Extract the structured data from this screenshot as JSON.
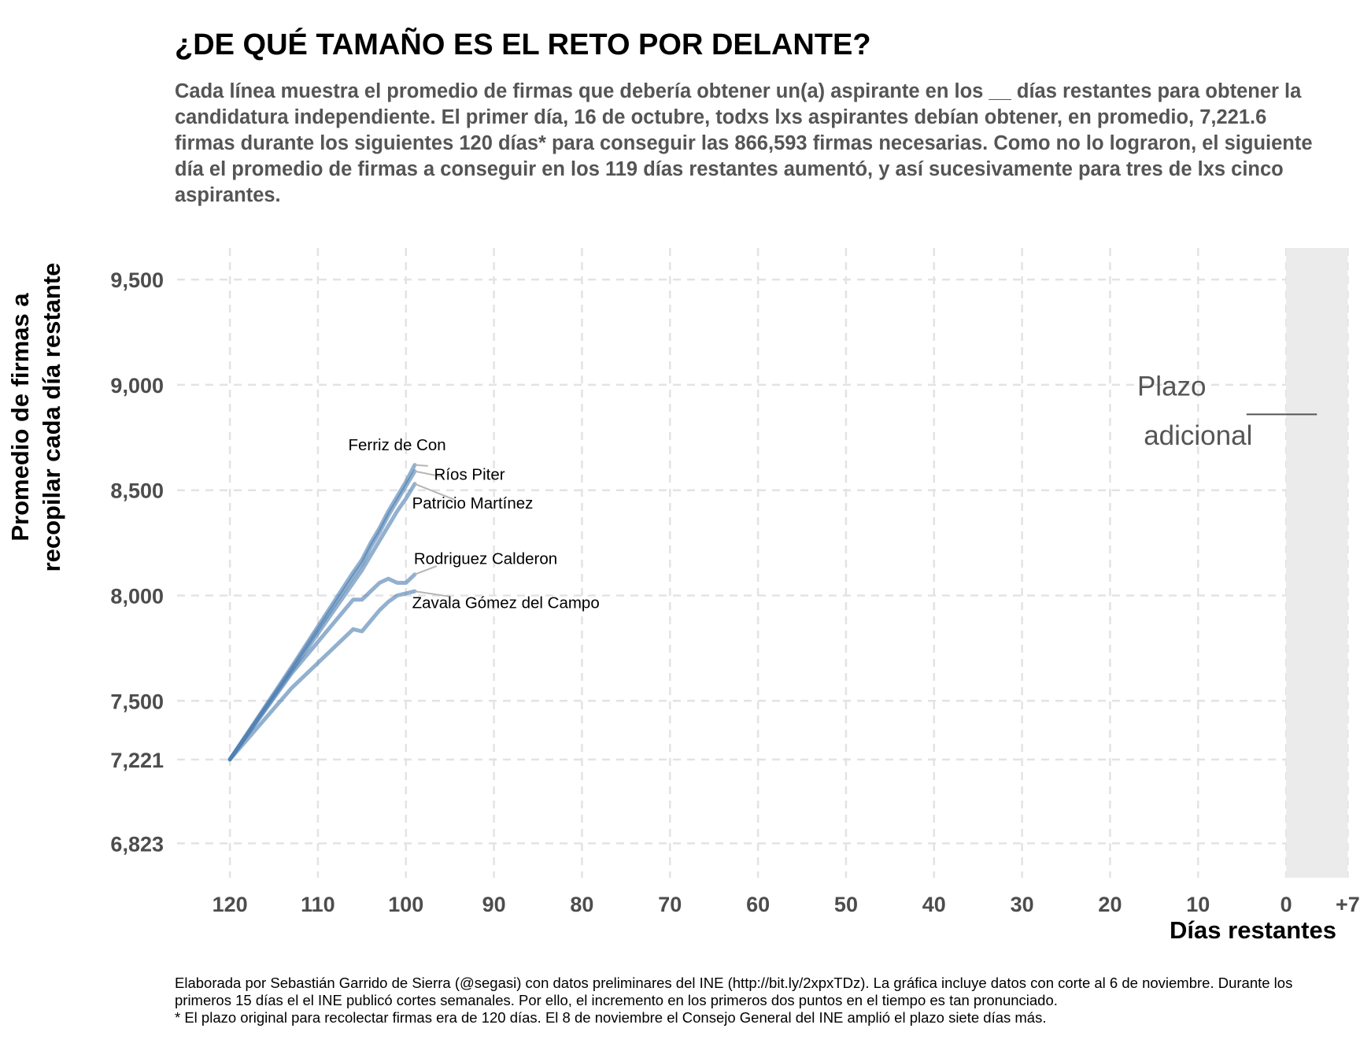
{
  "title": "¿DE QUÉ TAMAÑO ES EL RETO POR DELANTE?",
  "subtitle": "Cada línea muestra el promedio de firmas que debería obtener un(a) aspirante en los __ días restantes para obtener la candidatura independiente. El primer día, 16 de octubre, todxs lxs aspirantes debían obtener, en promedio, 7,221.6 firmas durante los siguientes 120 días* para conseguir las 866,593 firmas necesarias. Como no lo lograron, el siguiente día el promedio de firmas a conseguir en los 119 días restantes aumentó, y así sucesivamente para tres de lxs cinco aspirantes.",
  "caption": {
    "line1": "Elaborada por Sebastián Garrido de Sierra (@segasi) con datos preliminares del INE (http://bit.ly/2xpxTDz). La gráfica incluye datos con corte al 6 de noviembre. Durante los primeros 15 días el el INE publicó cortes semanales. Por ello, el incremento en los primeros dos puntos en el tiempo es tan pronunciado.",
    "line2": "* El plazo original para recolectar firmas era de 120 días. El 8 de noviembre el Consejo General del INE amplió el plazo siete días más."
  },
  "chart_data": {
    "type": "line",
    "xlabel": "Días restantes",
    "ylabel_lines": [
      "Promedio de firmas a",
      "recopilar cada día restante"
    ],
    "xlim": [
      126,
      -7.5
    ],
    "x_reversed": true,
    "ylim": [
      6660,
      9650
    ],
    "x_ticks": [
      120,
      110,
      100,
      90,
      80,
      70,
      60,
      50,
      40,
      30,
      20,
      10,
      0,
      -7
    ],
    "x_tick_labels": [
      "120",
      "110",
      "100",
      "90",
      "80",
      "70",
      "60",
      "50",
      "40",
      "30",
      "20",
      "10",
      "0",
      "+7"
    ],
    "y_ticks": [
      6823,
      7221,
      7500,
      8000,
      8500,
      9000,
      9500
    ],
    "y_tick_labels": [
      "6,823",
      "7,221",
      "7,500",
      "8,000",
      "8,500",
      "9,000",
      "9,500"
    ],
    "grid": true,
    "shaded_region": {
      "x_from": 0,
      "x_to": -7,
      "color": "#ebebeb",
      "label_lines": [
        "Plazo",
        "adicional"
      ]
    },
    "series": [
      {
        "name": "Ferriz de Con",
        "x": [
          120,
          113,
          106,
          105,
          104,
          103,
          102,
          101,
          100,
          99
        ],
        "y": [
          7221.6,
          7660,
          8110,
          8170,
          8250,
          8320,
          8400,
          8470,
          8540,
          8620
        ]
      },
      {
        "name": "Ríos Piter",
        "x": [
          120,
          113,
          106,
          105,
          104,
          103,
          102,
          101,
          100,
          99
        ],
        "y": [
          7221.6,
          7650,
          8090,
          8150,
          8230,
          8300,
          8380,
          8450,
          8520,
          8590
        ]
      },
      {
        "name": "Patricio Martínez",
        "x": [
          120,
          113,
          106,
          105,
          104,
          103,
          102,
          101,
          100,
          99
        ],
        "y": [
          7221.6,
          7640,
          8060,
          8120,
          8190,
          8260,
          8330,
          8400,
          8460,
          8530
        ]
      },
      {
        "name": "Rodriguez Calderon",
        "x": [
          120,
          113,
          106,
          105,
          104,
          103,
          102,
          101,
          100,
          99
        ],
        "y": [
          7221.6,
          7630,
          7980,
          7980,
          8020,
          8060,
          8080,
          8060,
          8060,
          8100
        ]
      },
      {
        "name": "Zavala Gómez del Campo",
        "x": [
          120,
          113,
          106,
          105,
          104,
          103,
          102,
          101,
          100,
          99
        ],
        "y": [
          7221.6,
          7560,
          7840,
          7830,
          7880,
          7930,
          7970,
          8000,
          8010,
          8020
        ]
      }
    ],
    "line_color": "#4f7fb1"
  }
}
